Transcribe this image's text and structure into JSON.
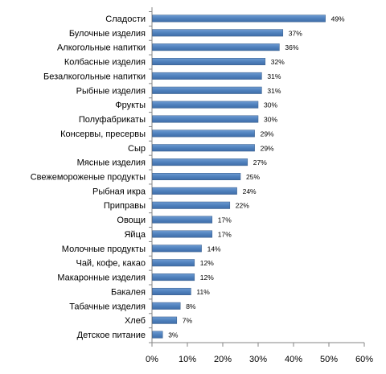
{
  "chart_data": {
    "type": "bar",
    "orientation": "horizontal",
    "title": "",
    "xlabel": "",
    "ylabel": "",
    "categories": [
      "Сладости",
      "Булочные изделия",
      "Алкогольные напитки",
      "Колбасные изделия",
      "Безалкогольные напитки",
      "Рыбные изделия",
      "Фрукты",
      "Полуфабрикаты",
      "Консервы, пресервы",
      "Сыр",
      "Мясные изделия",
      "Свежемороженые продукты",
      "Рыбная икра",
      "Приправы",
      "Овощи",
      "Яйца",
      "Молочные продукты",
      "Чай, кофе, какао",
      "Макаронные изделия",
      "Бакалея",
      "Табачные изделия",
      "Хлеб",
      "Детское питание"
    ],
    "values": [
      49,
      37,
      36,
      32,
      31,
      31,
      30,
      30,
      29,
      29,
      27,
      25,
      24,
      22,
      17,
      17,
      14,
      12,
      12,
      11,
      8,
      7,
      3
    ],
    "value_labels": [
      "49%",
      "37%",
      "36%",
      "32%",
      "31%",
      "31%",
      "30%",
      "30%",
      "29%",
      "29%",
      "27%",
      "25%",
      "24%",
      "22%",
      "17%",
      "17%",
      "14%",
      "12%",
      "12%",
      "11%",
      "8%",
      "7%",
      "3%"
    ],
    "xlim": [
      0,
      60
    ],
    "xticks": [
      "0%",
      "10%",
      "20%",
      "30%",
      "40%",
      "50%",
      "60%"
    ],
    "grid": false,
    "legend": "none",
    "bar_color": "#4F81BD",
    "bar_edge_color": "#385D8A"
  }
}
